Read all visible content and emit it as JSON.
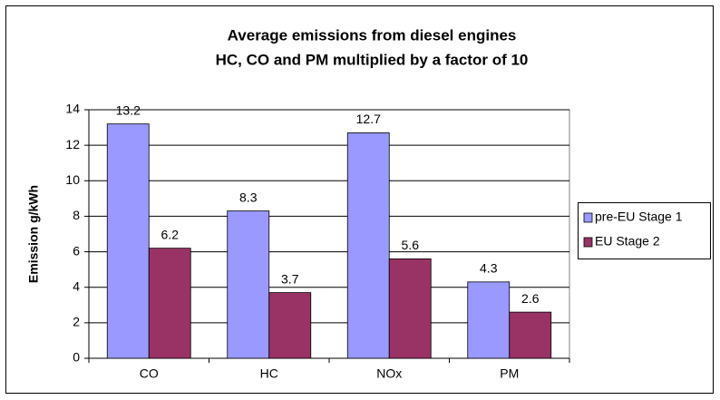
{
  "chart_data": {
    "type": "bar",
    "title": "Average emissions from diesel engines",
    "subtitle": "HC, CO and PM multiplied by a factor of 10",
    "y_label": "Emission g/kWh",
    "categories": [
      "CO",
      "HC",
      "NOx",
      "PM"
    ],
    "series": [
      {
        "name": "pre-EU Stage 1",
        "color": "#9999ff",
        "values": [
          13.2,
          8.3,
          12.7,
          4.3
        ]
      },
      {
        "name": "EU Stage 2",
        "color": "#993366",
        "values": [
          6.2,
          3.7,
          5.6,
          2.6
        ]
      }
    ],
    "ylim": [
      0,
      14
    ],
    "yticks": [
      0,
      2,
      4,
      6,
      8,
      10,
      12,
      14
    ],
    "grid": true,
    "legend": "right"
  }
}
